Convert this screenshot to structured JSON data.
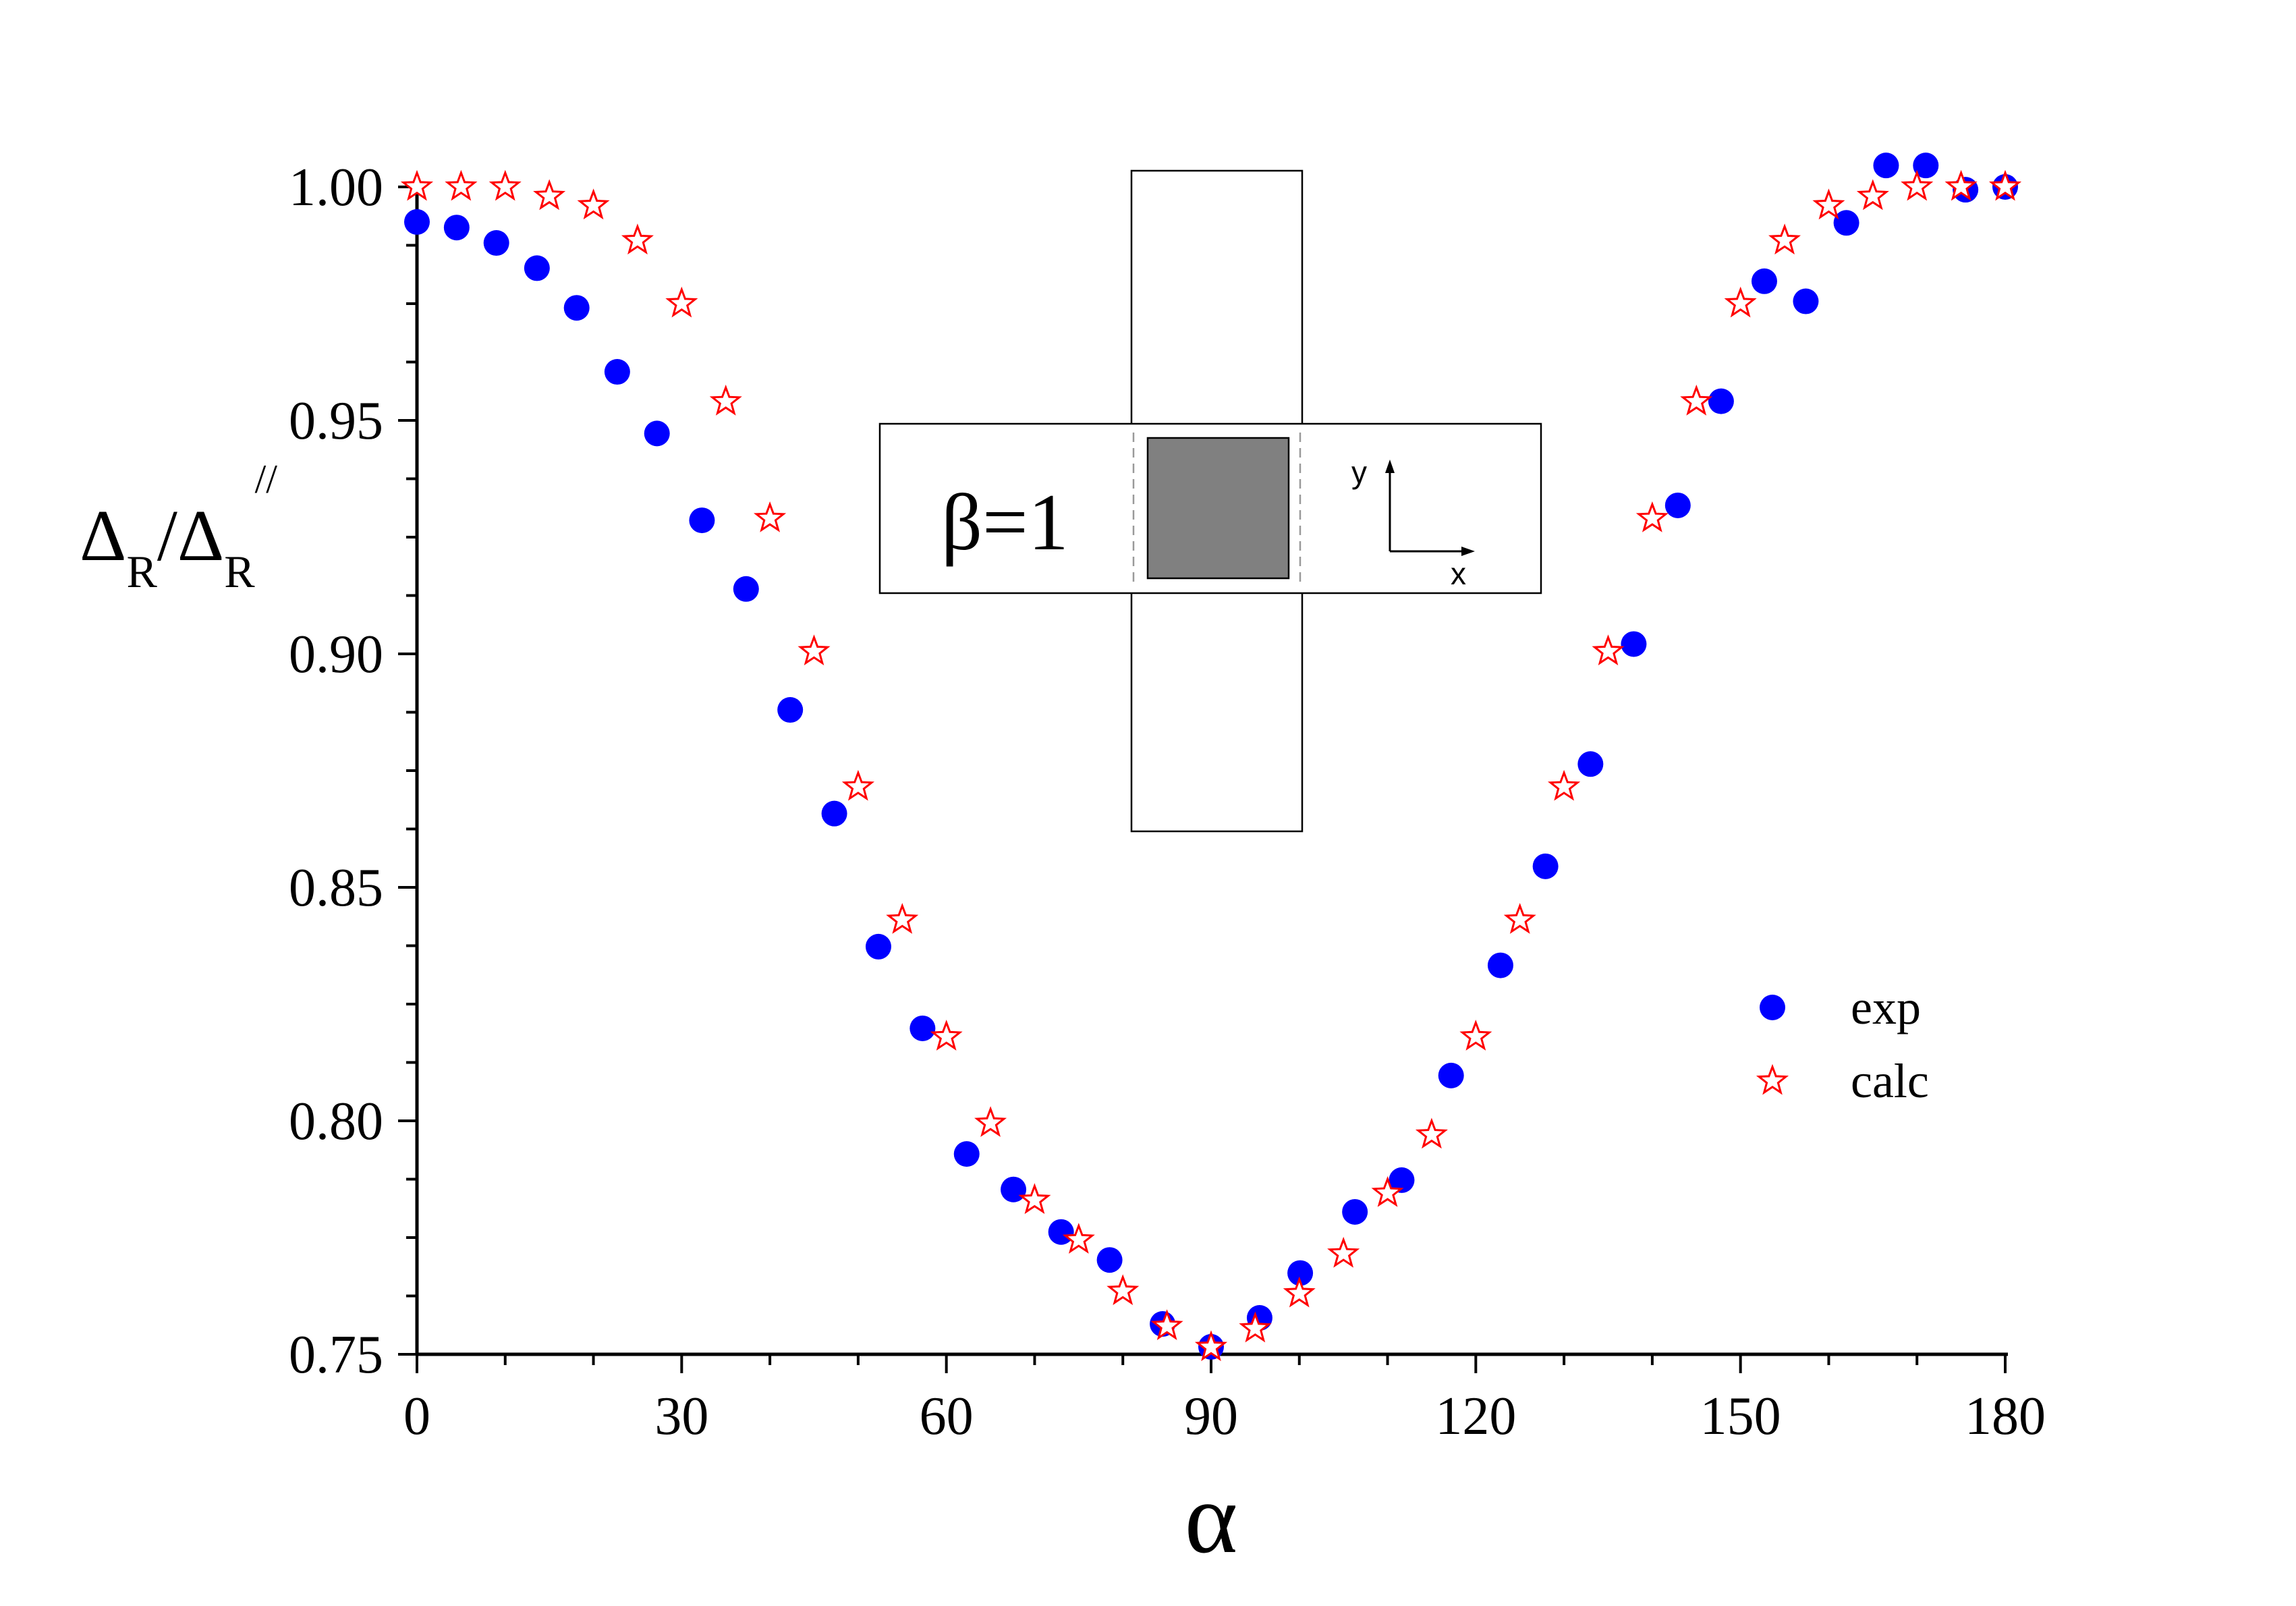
{
  "chart_data": {
    "type": "scatter",
    "xlabel": "α",
    "ylabel": {
      "main": "Δ",
      "sub1": "R",
      "slash": "/Δ",
      "sub2": "R",
      "sup": "//"
    },
    "xlim": [
      0,
      180
    ],
    "ylim": [
      0.75,
      1.0
    ],
    "xticks": [
      "0",
      "30",
      "60",
      "90",
      "120",
      "150",
      "180"
    ],
    "yticks": [
      "0.75",
      "0.80",
      "0.85",
      "0.90",
      "0.95",
      "1.00"
    ],
    "legend_position": "right",
    "grid": false,
    "series": [
      {
        "name": "exp",
        "marker": "circle",
        "color": "#0000ff",
        "x": [
          0,
          4.5,
          9,
          13.6,
          18.1,
          22.7,
          27.2,
          32.3,
          37.3,
          42.3,
          47.3,
          52.3,
          57.3,
          62.3,
          67.6,
          73,
          78.5,
          84.5,
          90,
          95.5,
          100.1,
          106.3,
          111.6,
          117.2,
          122.8,
          127.9,
          133,
          137.9,
          142.9,
          147.8,
          152.7,
          157.4,
          162,
          166.5,
          171,
          175.5,
          180
        ],
        "y": [
          0.9925,
          0.9913,
          0.988,
          0.9826,
          0.9741,
          0.9604,
          0.9472,
          0.9286,
          0.9139,
          0.888,
          0.8658,
          0.8373,
          0.8198,
          0.7929,
          0.7853,
          0.7762,
          0.7702,
          0.7565,
          0.7516,
          0.7578,
          0.7674,
          0.7805,
          0.7873,
          0.8097,
          0.8333,
          0.8545,
          0.8764,
          0.9021,
          0.9318,
          0.9541,
          0.9798,
          0.9755,
          0.9923,
          1.0046,
          1.0046,
          0.9994,
          1.0
        ]
      },
      {
        "name": "calc",
        "marker": "star",
        "color": "#ff0000",
        "x": [
          0,
          5,
          10,
          15,
          20,
          25,
          30,
          35,
          40,
          45,
          50,
          55,
          60,
          65,
          70,
          75,
          80,
          85,
          90,
          95,
          100,
          105,
          110,
          115,
          120,
          125,
          130,
          135,
          140,
          145,
          150,
          155,
          160,
          165,
          170,
          175,
          180
        ],
        "y": [
          1.0,
          1.0,
          1.0,
          0.998,
          0.996,
          0.9885,
          0.975,
          0.954,
          0.929,
          0.9005,
          0.8715,
          0.843,
          0.818,
          0.7995,
          0.783,
          0.7745,
          0.7635,
          0.756,
          0.7515,
          0.7555,
          0.763,
          0.7715,
          0.7845,
          0.797,
          0.818,
          0.843,
          0.8715,
          0.9005,
          0.929,
          0.954,
          0.975,
          0.9885,
          0.996,
          0.998,
          1.0,
          1.0,
          1.0
        ]
      }
    ],
    "inset": {
      "label": "β=1",
      "axis_y": "y",
      "axis_x": "x"
    }
  }
}
